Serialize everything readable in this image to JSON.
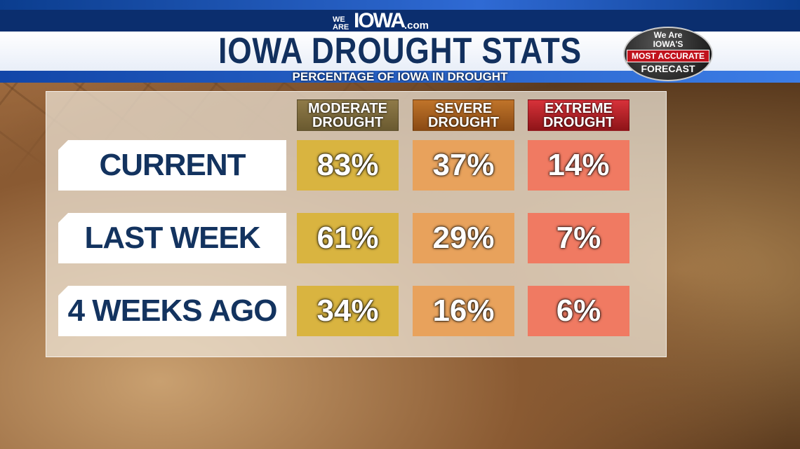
{
  "header": {
    "logo_we": "WE",
    "logo_are": "ARE",
    "logo_iowa": "IOWA",
    "logo_com": ".com",
    "title": "IOWA DROUGHT STATS",
    "subtitle": "PERCENTAGE OF IOWA IN DROUGHT"
  },
  "badge": {
    "line1": "We Are",
    "line2": "IOWA'S",
    "line3": "MOST ACCURATE",
    "line4": "FORECAST"
  },
  "colors": {
    "moderate": "#d9b440",
    "severe": "#e8a25c",
    "extreme": "#f07a62",
    "title": "#12305e"
  },
  "chart_data": {
    "type": "table",
    "title": "IOWA DROUGHT STATS",
    "subtitle": "PERCENTAGE OF IOWA IN DROUGHT",
    "columns": [
      "MODERATE DROUGHT",
      "SEVERE DROUGHT",
      "EXTREME DROUGHT"
    ],
    "rows": [
      {
        "label": "CURRENT",
        "values": [
          "83%",
          "37%",
          "14%"
        ]
      },
      {
        "label": "LAST WEEK",
        "values": [
          "61%",
          "29%",
          "7%"
        ]
      },
      {
        "label": "4 WEEKS AGO",
        "values": [
          "34%",
          "16%",
          "6%"
        ]
      }
    ]
  }
}
